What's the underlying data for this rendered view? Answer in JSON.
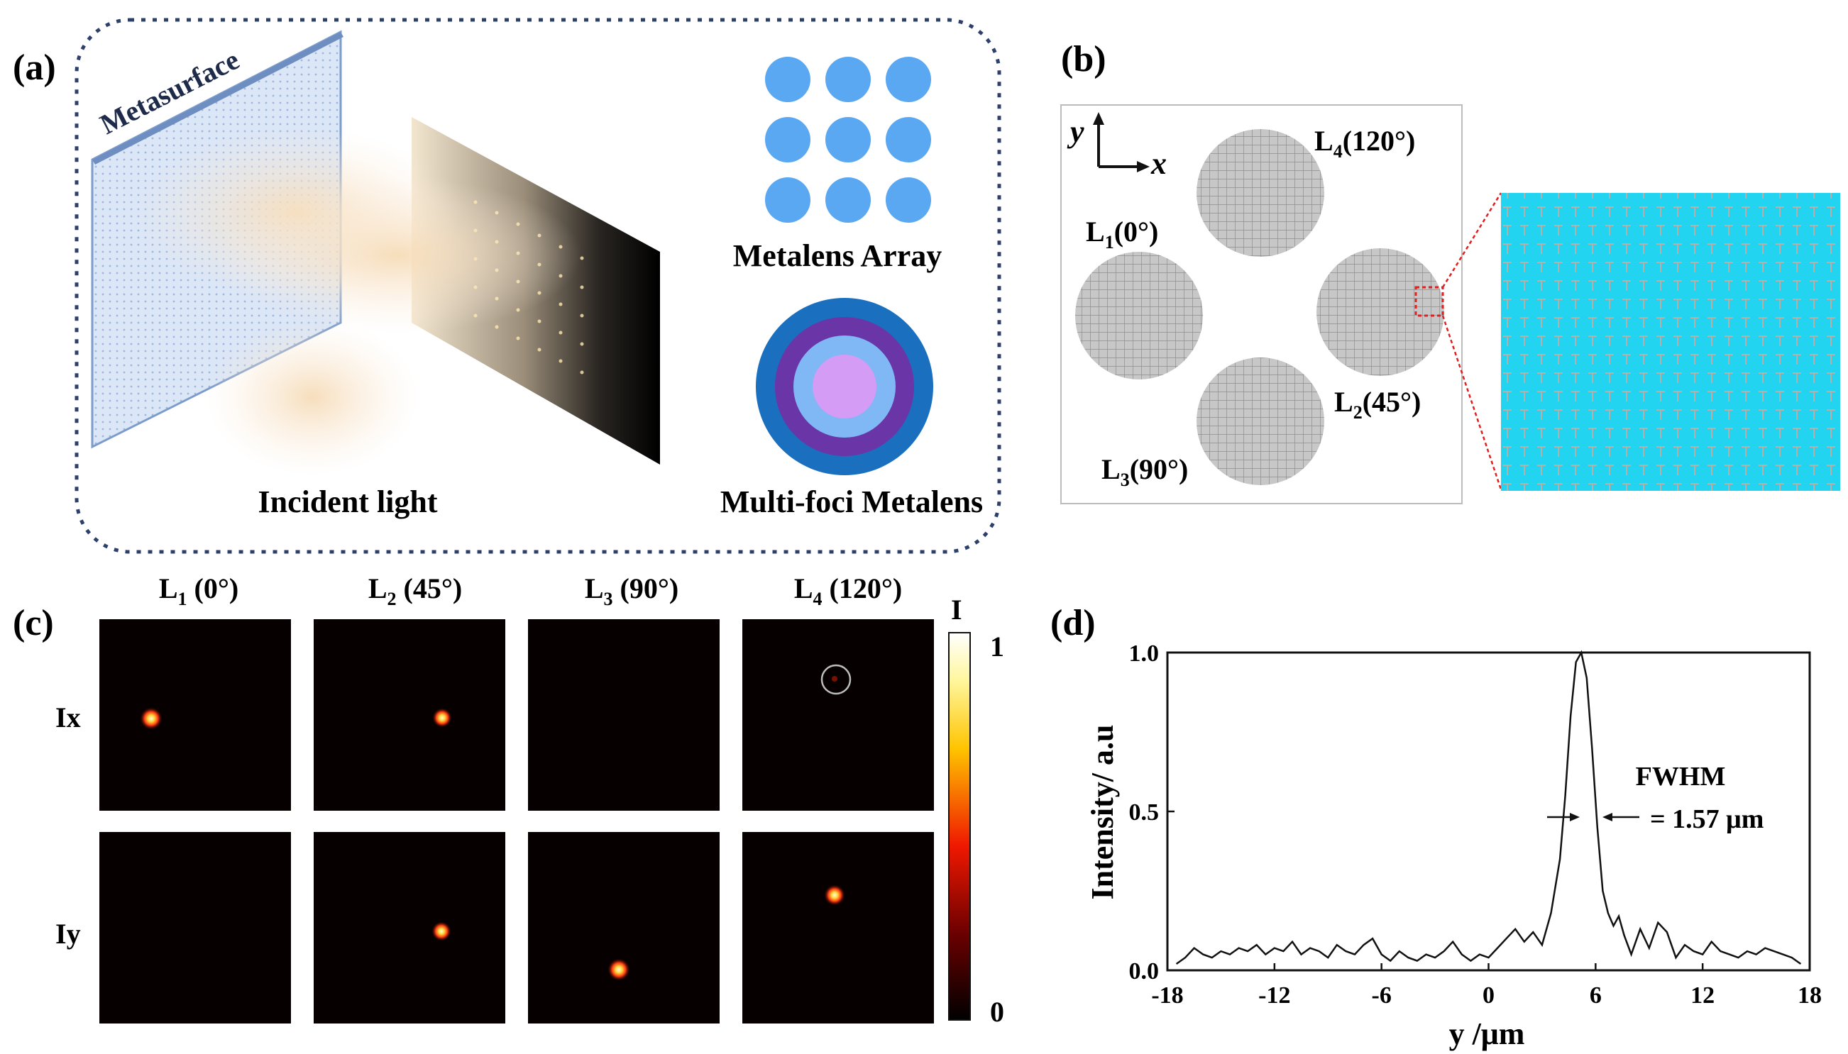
{
  "panel_a": {
    "label": "(a)",
    "metasurface_label": "Metasurface",
    "incident_light_label": "Incident light",
    "metalens_array_label": "Metalens Array",
    "multifoci_label": "Multi-foci Metalens",
    "colors": {
      "dot": "#5aa7f2",
      "ring_outer": "#1a6fbf",
      "ring_2": "#6a35a6",
      "ring_3": "#7fb8f5",
      "ring_inner": "#d49cf5",
      "border": "#2d3f6b"
    }
  },
  "panel_b": {
    "label": "(b)",
    "axis_y": "y",
    "axis_x": "x",
    "lenses": [
      {
        "name": "L",
        "sub": "1",
        "angle": "(0°)"
      },
      {
        "name": "L",
        "sub": "2",
        "angle": "(45°)"
      },
      {
        "name": "L",
        "sub": "3",
        "angle": "(90°)"
      },
      {
        "name": "L",
        "sub": "4",
        "angle": "(120°)"
      }
    ],
    "zoom_color": "#22d4f0"
  },
  "panel_c": {
    "label": "(c)",
    "columns": [
      {
        "name": "L",
        "sub": "1",
        "angle": " (0°)"
      },
      {
        "name": "L",
        "sub": "2",
        "angle": " (45°)"
      },
      {
        "name": "L",
        "sub": "3",
        "angle": " (90°)"
      },
      {
        "name": "L",
        "sub": "4",
        "angle": " (120°)"
      }
    ],
    "rows": [
      "Ix",
      "Iy"
    ],
    "colorbar_title": "I",
    "colorbar_max": "1",
    "colorbar_min": "0"
  },
  "chart_data": {
    "type": "line",
    "panel_label": "(d)",
    "xlabel": "y /μm",
    "ylabel": "Intensity/ a.u",
    "xlim": [
      -18,
      18
    ],
    "ylim": [
      0,
      1.0
    ],
    "xticks": [
      "-18",
      "-12",
      "-6",
      "0",
      "6",
      "12",
      "18"
    ],
    "yticks": [
      "0.0",
      "0.5",
      "1.0"
    ],
    "annotation_title": "FWHM",
    "annotation_value": "= 1.57 μm",
    "series": [
      {
        "x": [
          -17.5,
          -17,
          -16.5,
          -16,
          -15.5,
          -15,
          -14.5,
          -14,
          -13.5,
          -13,
          -12.5,
          -12,
          -11.5,
          -11,
          -10.5,
          -10,
          -9.5,
          -9,
          -8.5,
          -8,
          -7.5,
          -7,
          -6.5,
          -6,
          -5.5,
          -5,
          -4.5,
          -4,
          -3.5,
          -3,
          -2.5,
          -2,
          -1.5,
          -1,
          -0.5,
          0,
          0.5,
          1,
          1.5,
          2,
          2.5,
          3,
          3.5,
          4,
          4.3,
          4.6,
          4.9,
          5.2,
          5.5,
          5.8,
          6.1,
          6.4,
          6.7,
          7,
          7.3,
          7.6,
          8,
          8.5,
          9,
          9.5,
          10,
          10.5,
          11,
          11.5,
          12,
          12.5,
          13,
          13.5,
          14,
          14.5,
          15,
          15.5,
          16,
          16.5,
          17,
          17.5
        ],
        "y": [
          0.02,
          0.04,
          0.07,
          0.05,
          0.04,
          0.06,
          0.05,
          0.07,
          0.06,
          0.08,
          0.05,
          0.07,
          0.06,
          0.09,
          0.05,
          0.07,
          0.06,
          0.04,
          0.08,
          0.06,
          0.05,
          0.08,
          0.1,
          0.05,
          0.03,
          0.06,
          0.04,
          0.03,
          0.05,
          0.04,
          0.06,
          0.09,
          0.05,
          0.03,
          0.05,
          0.04,
          0.07,
          0.1,
          0.13,
          0.09,
          0.12,
          0.08,
          0.18,
          0.35,
          0.55,
          0.8,
          0.97,
          1.0,
          0.92,
          0.7,
          0.45,
          0.25,
          0.18,
          0.14,
          0.17,
          0.11,
          0.05,
          0.13,
          0.07,
          0.15,
          0.12,
          0.04,
          0.08,
          0.06,
          0.05,
          0.09,
          0.06,
          0.05,
          0.04,
          0.06,
          0.05,
          0.07,
          0.06,
          0.05,
          0.04,
          0.02
        ]
      }
    ]
  }
}
